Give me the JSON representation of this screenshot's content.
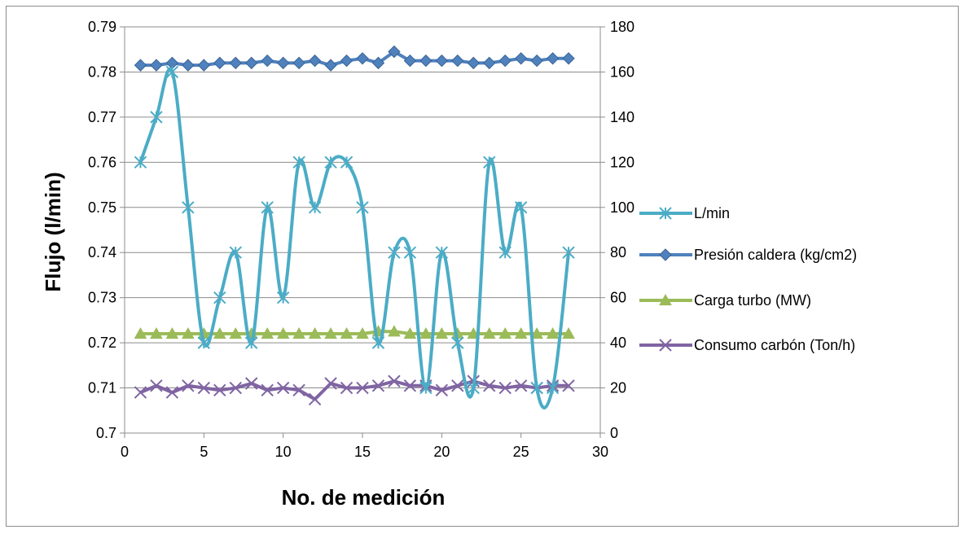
{
  "chart_data": {
    "type": "line",
    "xlabel": "No. de medición",
    "ylabel": "Flujo (l/min)",
    "xlim": [
      0,
      30
    ],
    "ylim": [
      0.7,
      0.79
    ],
    "y2lim": [
      0,
      180
    ],
    "x_ticks": [
      "0",
      "5",
      "10",
      "15",
      "20",
      "25",
      "30"
    ],
    "y_ticks": [
      "0.7",
      "0.71",
      "0.72",
      "0.73",
      "0.74",
      "0.75",
      "0.76",
      "0.77",
      "0.78",
      "0.79"
    ],
    "y2_ticks": [
      "0",
      "20",
      "40",
      "60",
      "80",
      "100",
      "120",
      "140",
      "160",
      "180"
    ],
    "grid": "horizontal",
    "legend": "right",
    "x": [
      1,
      2,
      3,
      4,
      5,
      6,
      7,
      8,
      9,
      10,
      11,
      12,
      13,
      14,
      15,
      16,
      17,
      18,
      19,
      20,
      21,
      22,
      23,
      24,
      25,
      26,
      27,
      28
    ],
    "series": [
      {
        "name": "L/min",
        "axis": "left",
        "color": "#4bacc6",
        "marker": "star",
        "smooth": true,
        "values": [
          0.76,
          0.77,
          0.78,
          0.75,
          0.72,
          0.73,
          0.74,
          0.72,
          0.75,
          0.73,
          0.76,
          0.75,
          0.76,
          0.76,
          0.75,
          0.72,
          0.74,
          0.74,
          0.71,
          0.74,
          0.72,
          0.71,
          0.76,
          0.74,
          0.75,
          0.71,
          0.71,
          0.74
        ]
      },
      {
        "name": "Presión caldera (kg/cm2)",
        "axis": "right",
        "color": "#4f81bd",
        "marker": "diamond",
        "smooth": false,
        "values": [
          163,
          163,
          164,
          163,
          163,
          164,
          164,
          164,
          165,
          164,
          164,
          165,
          163,
          165,
          166,
          164,
          169,
          165,
          165,
          165,
          165,
          164,
          164,
          165,
          166,
          165,
          166,
          166
        ]
      },
      {
        "name": "Carga turbo (MW)",
        "axis": "right",
        "color": "#9bbb59",
        "marker": "triangle",
        "smooth": false,
        "values": [
          44,
          44,
          44,
          44,
          44,
          44,
          44,
          44,
          44,
          44,
          44,
          44,
          44,
          44,
          44,
          45,
          45,
          44,
          44,
          44,
          44,
          44,
          44,
          44,
          44,
          44,
          44,
          44
        ]
      },
      {
        "name": "Consumo carbón (Ton/h)",
        "axis": "right",
        "color": "#8064a2",
        "marker": "x",
        "smooth": false,
        "values": [
          18,
          21,
          18,
          21,
          20,
          19,
          20,
          22,
          19,
          20,
          19,
          15,
          22,
          20,
          20,
          21,
          23,
          21,
          21,
          19,
          21,
          23,
          21,
          20,
          21,
          20,
          21,
          21
        ]
      }
    ]
  }
}
